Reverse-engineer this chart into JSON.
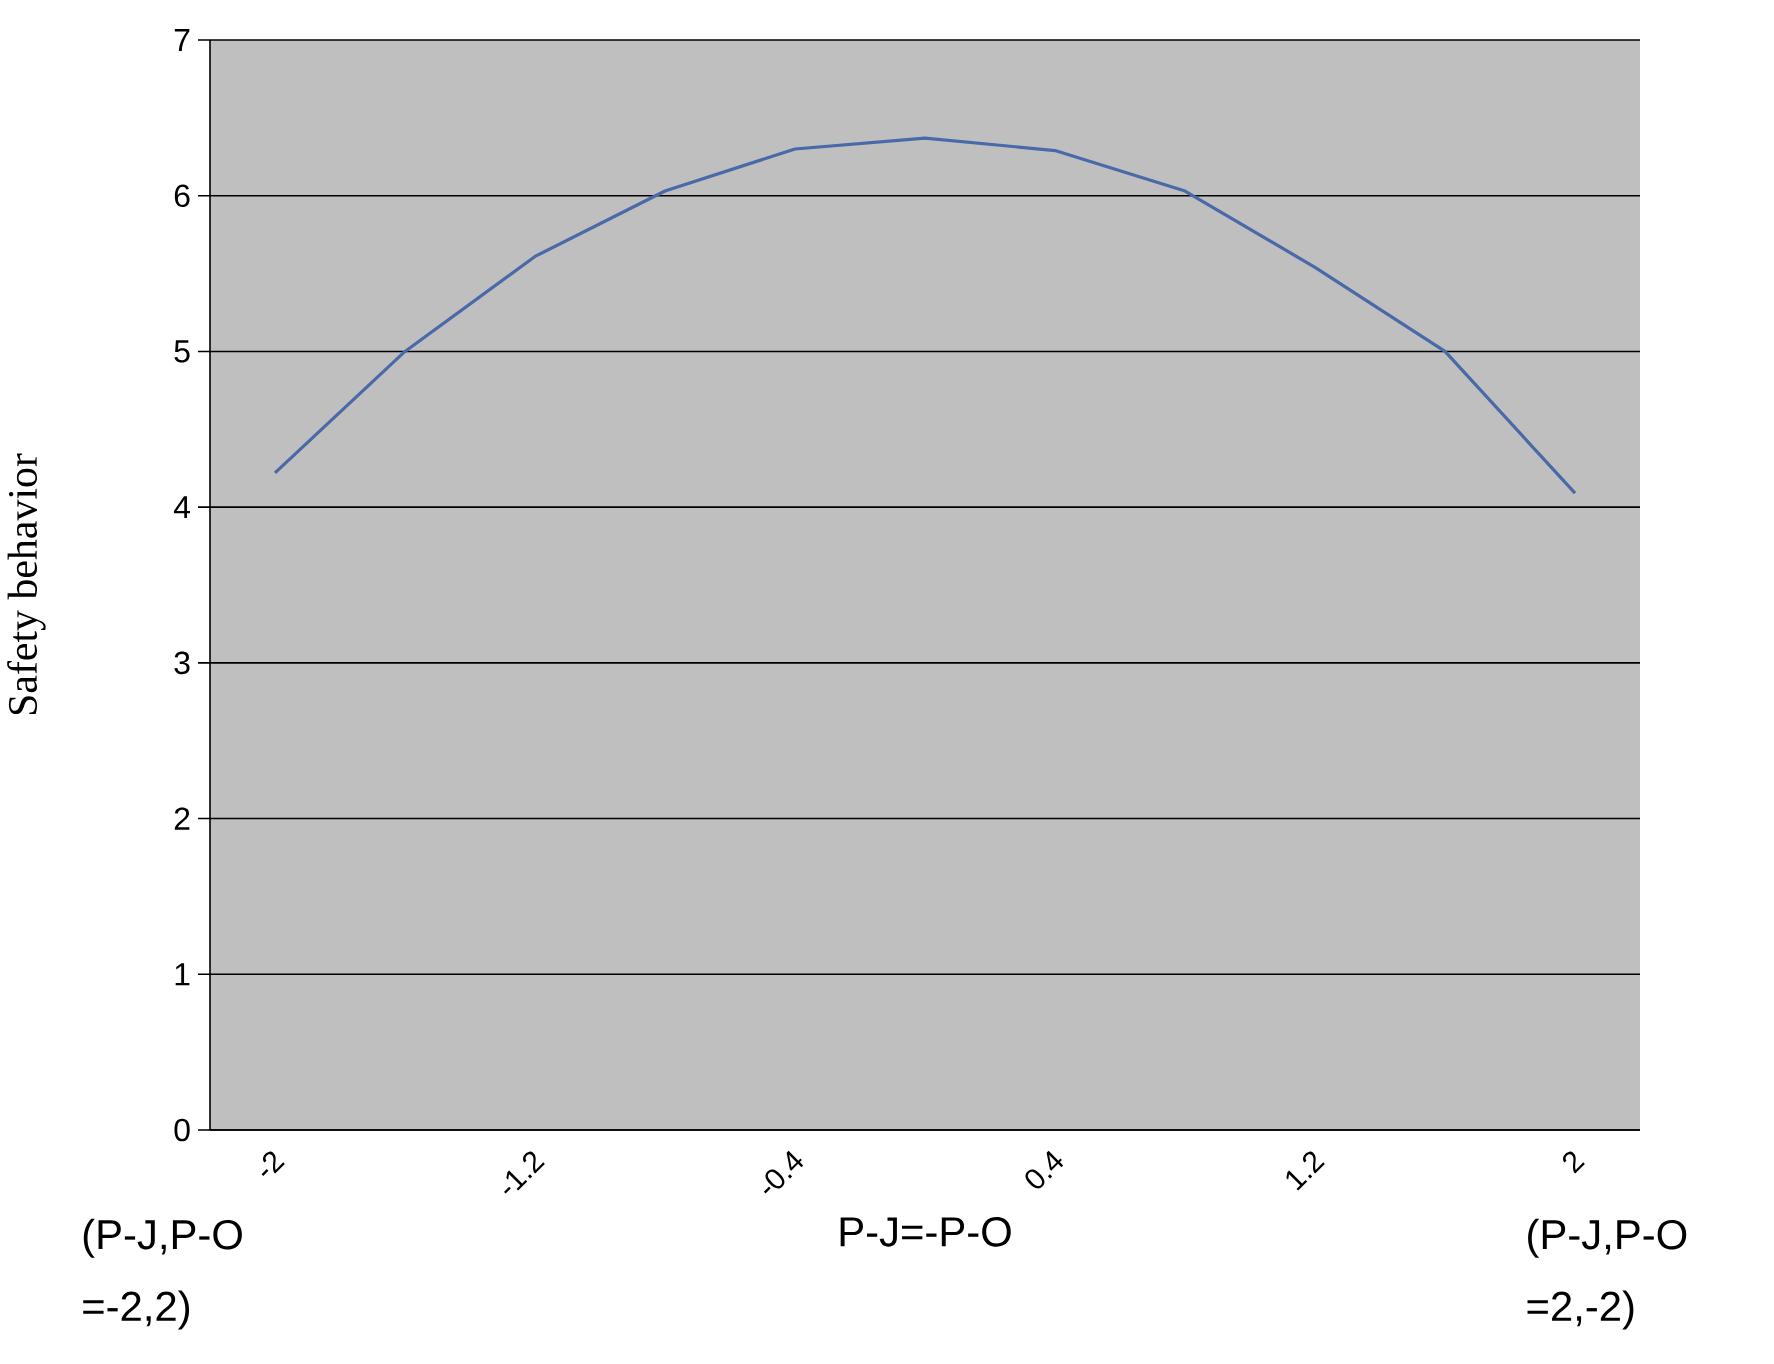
{
  "chart_data": {
    "type": "line",
    "xlabel": "P-J=-P-O",
    "ylabel": "Safety behavior",
    "categories": [
      "-2",
      null,
      "-1.2",
      null,
      "-0.4",
      null,
      "0.4",
      null,
      "1.2",
      null,
      "2"
    ],
    "series": [
      {
        "color": "#4a69a8",
        "values": [
          4.22,
          5.0,
          5.61,
          6.03,
          6.3,
          6.37,
          6.29,
          6.03,
          5.54,
          5.0,
          4.09
        ]
      }
    ],
    "ylim": [
      0,
      7
    ],
    "yticks": [
      0,
      1,
      2,
      3,
      4,
      5,
      6,
      7
    ],
    "grid": "y",
    "marker": "none",
    "line_style": "solid",
    "annotations": [
      "(P-J,P-O =-2,2)",
      "(P-J,P-O =2,-2)"
    ]
  }
}
